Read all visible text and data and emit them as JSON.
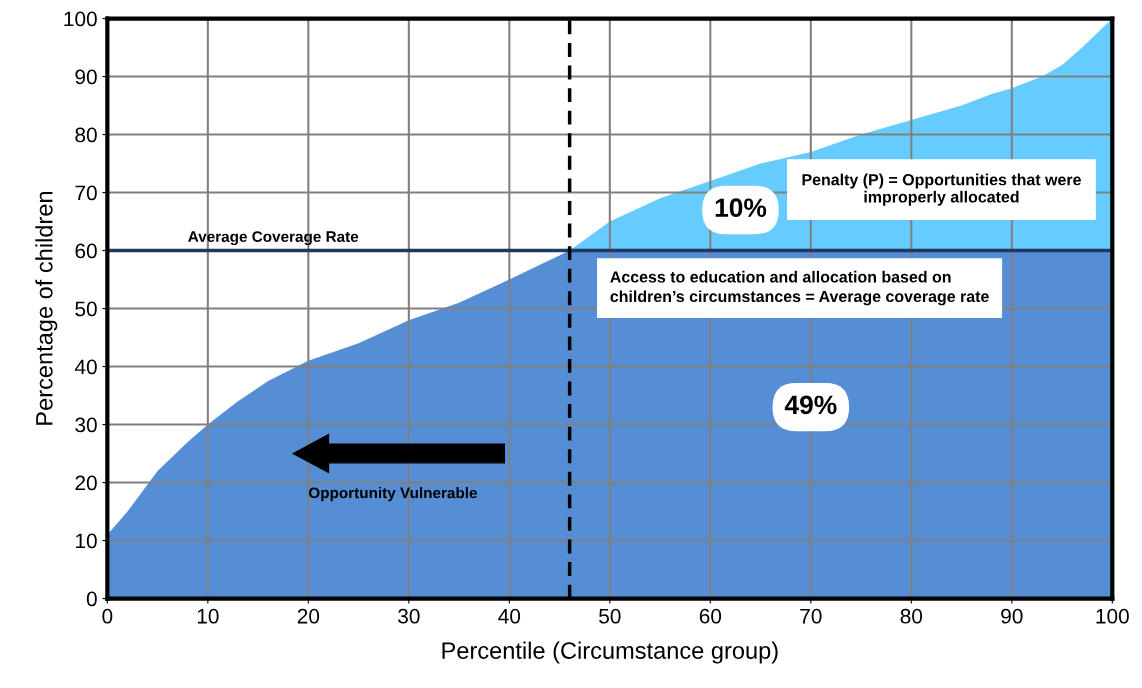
{
  "chart_data": {
    "type": "area",
    "stacked": true,
    "xlabel": "Percentile (Circumstance group)",
    "ylabel": "Percentage of children",
    "x": [
      0,
      2,
      5,
      8,
      10,
      13,
      16,
      20,
      25,
      30,
      35,
      40,
      43,
      46,
      50,
      55,
      60,
      65,
      70,
      75,
      80,
      85,
      88,
      90,
      93,
      95,
      97,
      100
    ],
    "series": [
      {
        "color": "#558ed5",
        "values": [
          11,
          15,
          22,
          27,
          30,
          34,
          37.5,
          41,
          44,
          48,
          51,
          55,
          57.5,
          60,
          60,
          60,
          60,
          60,
          60,
          60,
          60,
          60,
          60,
          60,
          60,
          60,
          60,
          60
        ]
      },
      {
        "color": "#66ccff",
        "values": [
          0,
          0,
          0,
          0,
          0,
          0,
          0,
          0,
          0,
          0,
          0,
          0,
          0,
          0,
          5,
          9,
          12,
          15,
          17,
          20,
          22.5,
          25,
          27,
          28,
          30,
          32,
          35,
          40
        ]
      }
    ],
    "xlim": [
      0,
      100
    ],
    "ylim": [
      0,
      100
    ],
    "xticks": [
      0,
      10,
      20,
      30,
      40,
      50,
      60,
      70,
      80,
      90,
      100
    ],
    "yticks": [
      0,
      10,
      20,
      30,
      40,
      50,
      60,
      70,
      80,
      90,
      100
    ],
    "grid": true,
    "ref_lines": [
      {
        "axis": "y",
        "value": 60,
        "label": "Average Coverage Rate",
        "color": "#1f3864"
      },
      {
        "axis": "x",
        "value": 46,
        "color": "#000000",
        "line_style": "dashed"
      }
    ],
    "annotations": [
      "10%",
      {
        "text": "Penalty (P) = Opportunities that were improperly allocated"
      },
      {
        "text": "Access to education and allocation based on children’s circumstances = Average coverage rate"
      },
      "49%",
      {
        "text": "Opportunity Vulnerable"
      }
    ]
  }
}
